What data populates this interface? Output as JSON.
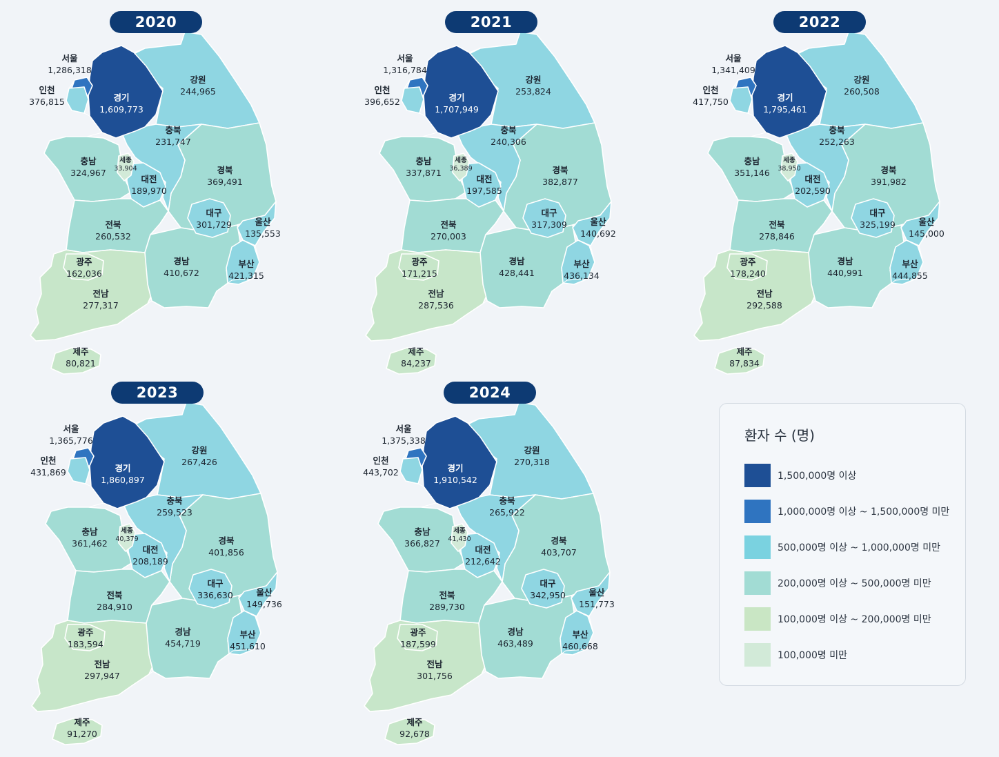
{
  "colors": {
    "c1500k": "#1e4f95",
    "c1000k": "#2f74c0",
    "c500k": "#8fd6e2",
    "c200k": "#a2dcd4",
    "c100k": "#c7e6c9",
    "cUnder": "#d2ead8"
  },
  "legend": {
    "title": "환자 수 (명)",
    "items": [
      {
        "label": "1,500,000명 이상",
        "color": "#1e4f95"
      },
      {
        "label": "1,000,000명 이상 ~ 1,500,000명 미만",
        "color": "#2f74c0"
      },
      {
        "label": "500,000명 이상 ~ 1,000,000명 미만",
        "color": "#7ad2e0"
      },
      {
        "label": "200,000명 이상 ~ 500,000명 미만",
        "color": "#a2dcd4"
      },
      {
        "label": "100,000명 이상 ~ 200,000명 미만",
        "color": "#c9e6c4"
      },
      {
        "label": "100,000명 미만",
        "color": "#d2ead8"
      }
    ]
  },
  "maps": [
    {
      "year": "2020",
      "regions": {
        "seoul": {
          "name": "서울",
          "value": "1,286,318"
        },
        "incheon": {
          "name": "인천",
          "value": "376,815"
        },
        "gyeonggi": {
          "name": "경기",
          "value": "1,609,773"
        },
        "gangwon": {
          "name": "강원",
          "value": "244,965"
        },
        "chungbuk": {
          "name": "충북",
          "value": "231,747"
        },
        "chungnam": {
          "name": "충남",
          "value": "324,967"
        },
        "sejong": {
          "name": "세종",
          "value": "33,904"
        },
        "daejeon": {
          "name": "대전",
          "value": "189,970"
        },
        "gyeongbuk": {
          "name": "경북",
          "value": "369,491"
        },
        "daegu": {
          "name": "대구",
          "value": "301,729"
        },
        "jeonbuk": {
          "name": "전북",
          "value": "260,532"
        },
        "ulsan": {
          "name": "울산",
          "value": "135,553"
        },
        "gwangju": {
          "name": "광주",
          "value": "162,036"
        },
        "gyeongnam": {
          "name": "경남",
          "value": "410,672"
        },
        "busan": {
          "name": "부산",
          "value": "421,315"
        },
        "jeonnam": {
          "name": "전남",
          "value": "277,317"
        },
        "jeju": {
          "name": "제주",
          "value": "80,821"
        }
      }
    },
    {
      "year": "2021",
      "regions": {
        "seoul": {
          "name": "서울",
          "value": "1,316,784"
        },
        "incheon": {
          "name": "인천",
          "value": "396,652"
        },
        "gyeonggi": {
          "name": "경기",
          "value": "1,707,949"
        },
        "gangwon": {
          "name": "강원",
          "value": "253,824"
        },
        "chungbuk": {
          "name": "충북",
          "value": "240,306"
        },
        "chungnam": {
          "name": "충남",
          "value": "337,871"
        },
        "sejong": {
          "name": "세종",
          "value": "36,389"
        },
        "daejeon": {
          "name": "대전",
          "value": "197,585"
        },
        "gyeongbuk": {
          "name": "경북",
          "value": "382,877"
        },
        "daegu": {
          "name": "대구",
          "value": "317,309"
        },
        "jeonbuk": {
          "name": "전북",
          "value": "270,003"
        },
        "ulsan": {
          "name": "울산",
          "value": "140,692"
        },
        "gwangju": {
          "name": "광주",
          "value": "171,215"
        },
        "gyeongnam": {
          "name": "경남",
          "value": "428,441"
        },
        "busan": {
          "name": "부산",
          "value": "436,134"
        },
        "jeonnam": {
          "name": "전남",
          "value": "287,536"
        },
        "jeju": {
          "name": "제주",
          "value": "84,237"
        }
      }
    },
    {
      "year": "2022",
      "regions": {
        "seoul": {
          "name": "서울",
          "value": "1,341,409"
        },
        "incheon": {
          "name": "인천",
          "value": "417,750"
        },
        "gyeonggi": {
          "name": "경기",
          "value": "1,795,461"
        },
        "gangwon": {
          "name": "강원",
          "value": "260,508"
        },
        "chungbuk": {
          "name": "충북",
          "value": "252,263"
        },
        "chungnam": {
          "name": "충남",
          "value": "351,146"
        },
        "sejong": {
          "name": "세종",
          "value": "38,950"
        },
        "daejeon": {
          "name": "대전",
          "value": "202,590"
        },
        "gyeongbuk": {
          "name": "경북",
          "value": "391,982"
        },
        "daegu": {
          "name": "대구",
          "value": "325,199"
        },
        "jeonbuk": {
          "name": "전북",
          "value": "278,846"
        },
        "ulsan": {
          "name": "울산",
          "value": "145,000"
        },
        "gwangju": {
          "name": "광주",
          "value": "178,240"
        },
        "gyeongnam": {
          "name": "경남",
          "value": "440,991"
        },
        "busan": {
          "name": "부산",
          "value": "444,855"
        },
        "jeonnam": {
          "name": "전남",
          "value": "292,588"
        },
        "jeju": {
          "name": "제주",
          "value": "87,834"
        }
      }
    },
    {
      "year": "2023",
      "regions": {
        "seoul": {
          "name": "서울",
          "value": "1,365,776"
        },
        "incheon": {
          "name": "인천",
          "value": "431,869"
        },
        "gyeonggi": {
          "name": "경기",
          "value": "1,860,897"
        },
        "gangwon": {
          "name": "강원",
          "value": "267,426"
        },
        "chungbuk": {
          "name": "충북",
          "value": "259,523"
        },
        "chungnam": {
          "name": "충남",
          "value": "361,462"
        },
        "sejong": {
          "name": "세종",
          "value": "40,379"
        },
        "daejeon": {
          "name": "대전",
          "value": "208,189"
        },
        "gyeongbuk": {
          "name": "경북",
          "value": "401,856"
        },
        "daegu": {
          "name": "대구",
          "value": "336,630"
        },
        "jeonbuk": {
          "name": "전북",
          "value": "284,910"
        },
        "ulsan": {
          "name": "울산",
          "value": "149,736"
        },
        "gwangju": {
          "name": "광주",
          "value": "183,594"
        },
        "gyeongnam": {
          "name": "경남",
          "value": "454,719"
        },
        "busan": {
          "name": "부산",
          "value": "451,610"
        },
        "jeonnam": {
          "name": "전남",
          "value": "297,947"
        },
        "jeju": {
          "name": "제주",
          "value": "91,270"
        }
      }
    },
    {
      "year": "2024",
      "regions": {
        "seoul": {
          "name": "서울",
          "value": "1,375,338"
        },
        "incheon": {
          "name": "인천",
          "value": "443,702"
        },
        "gyeonggi": {
          "name": "경기",
          "value": "1,910,542"
        },
        "gangwon": {
          "name": "강원",
          "value": "270,318"
        },
        "chungbuk": {
          "name": "충북",
          "value": "265,922"
        },
        "chungnam": {
          "name": "충남",
          "value": "366,827"
        },
        "sejong": {
          "name": "세종",
          "value": "41,430"
        },
        "daejeon": {
          "name": "대전",
          "value": "212,642"
        },
        "gyeongbuk": {
          "name": "경북",
          "value": "403,707"
        },
        "daegu": {
          "name": "대구",
          "value": "342,950"
        },
        "jeonbuk": {
          "name": "전북",
          "value": "289,730"
        },
        "ulsan": {
          "name": "울산",
          "value": "151,773"
        },
        "gwangju": {
          "name": "광주",
          "value": "187,599"
        },
        "gyeongnam": {
          "name": "경남",
          "value": "463,489"
        },
        "busan": {
          "name": "부산",
          "value": "460,668"
        },
        "jeonnam": {
          "name": "전남",
          "value": "301,756"
        },
        "jeju": {
          "name": "제주",
          "value": "92,678"
        }
      }
    }
  ]
}
